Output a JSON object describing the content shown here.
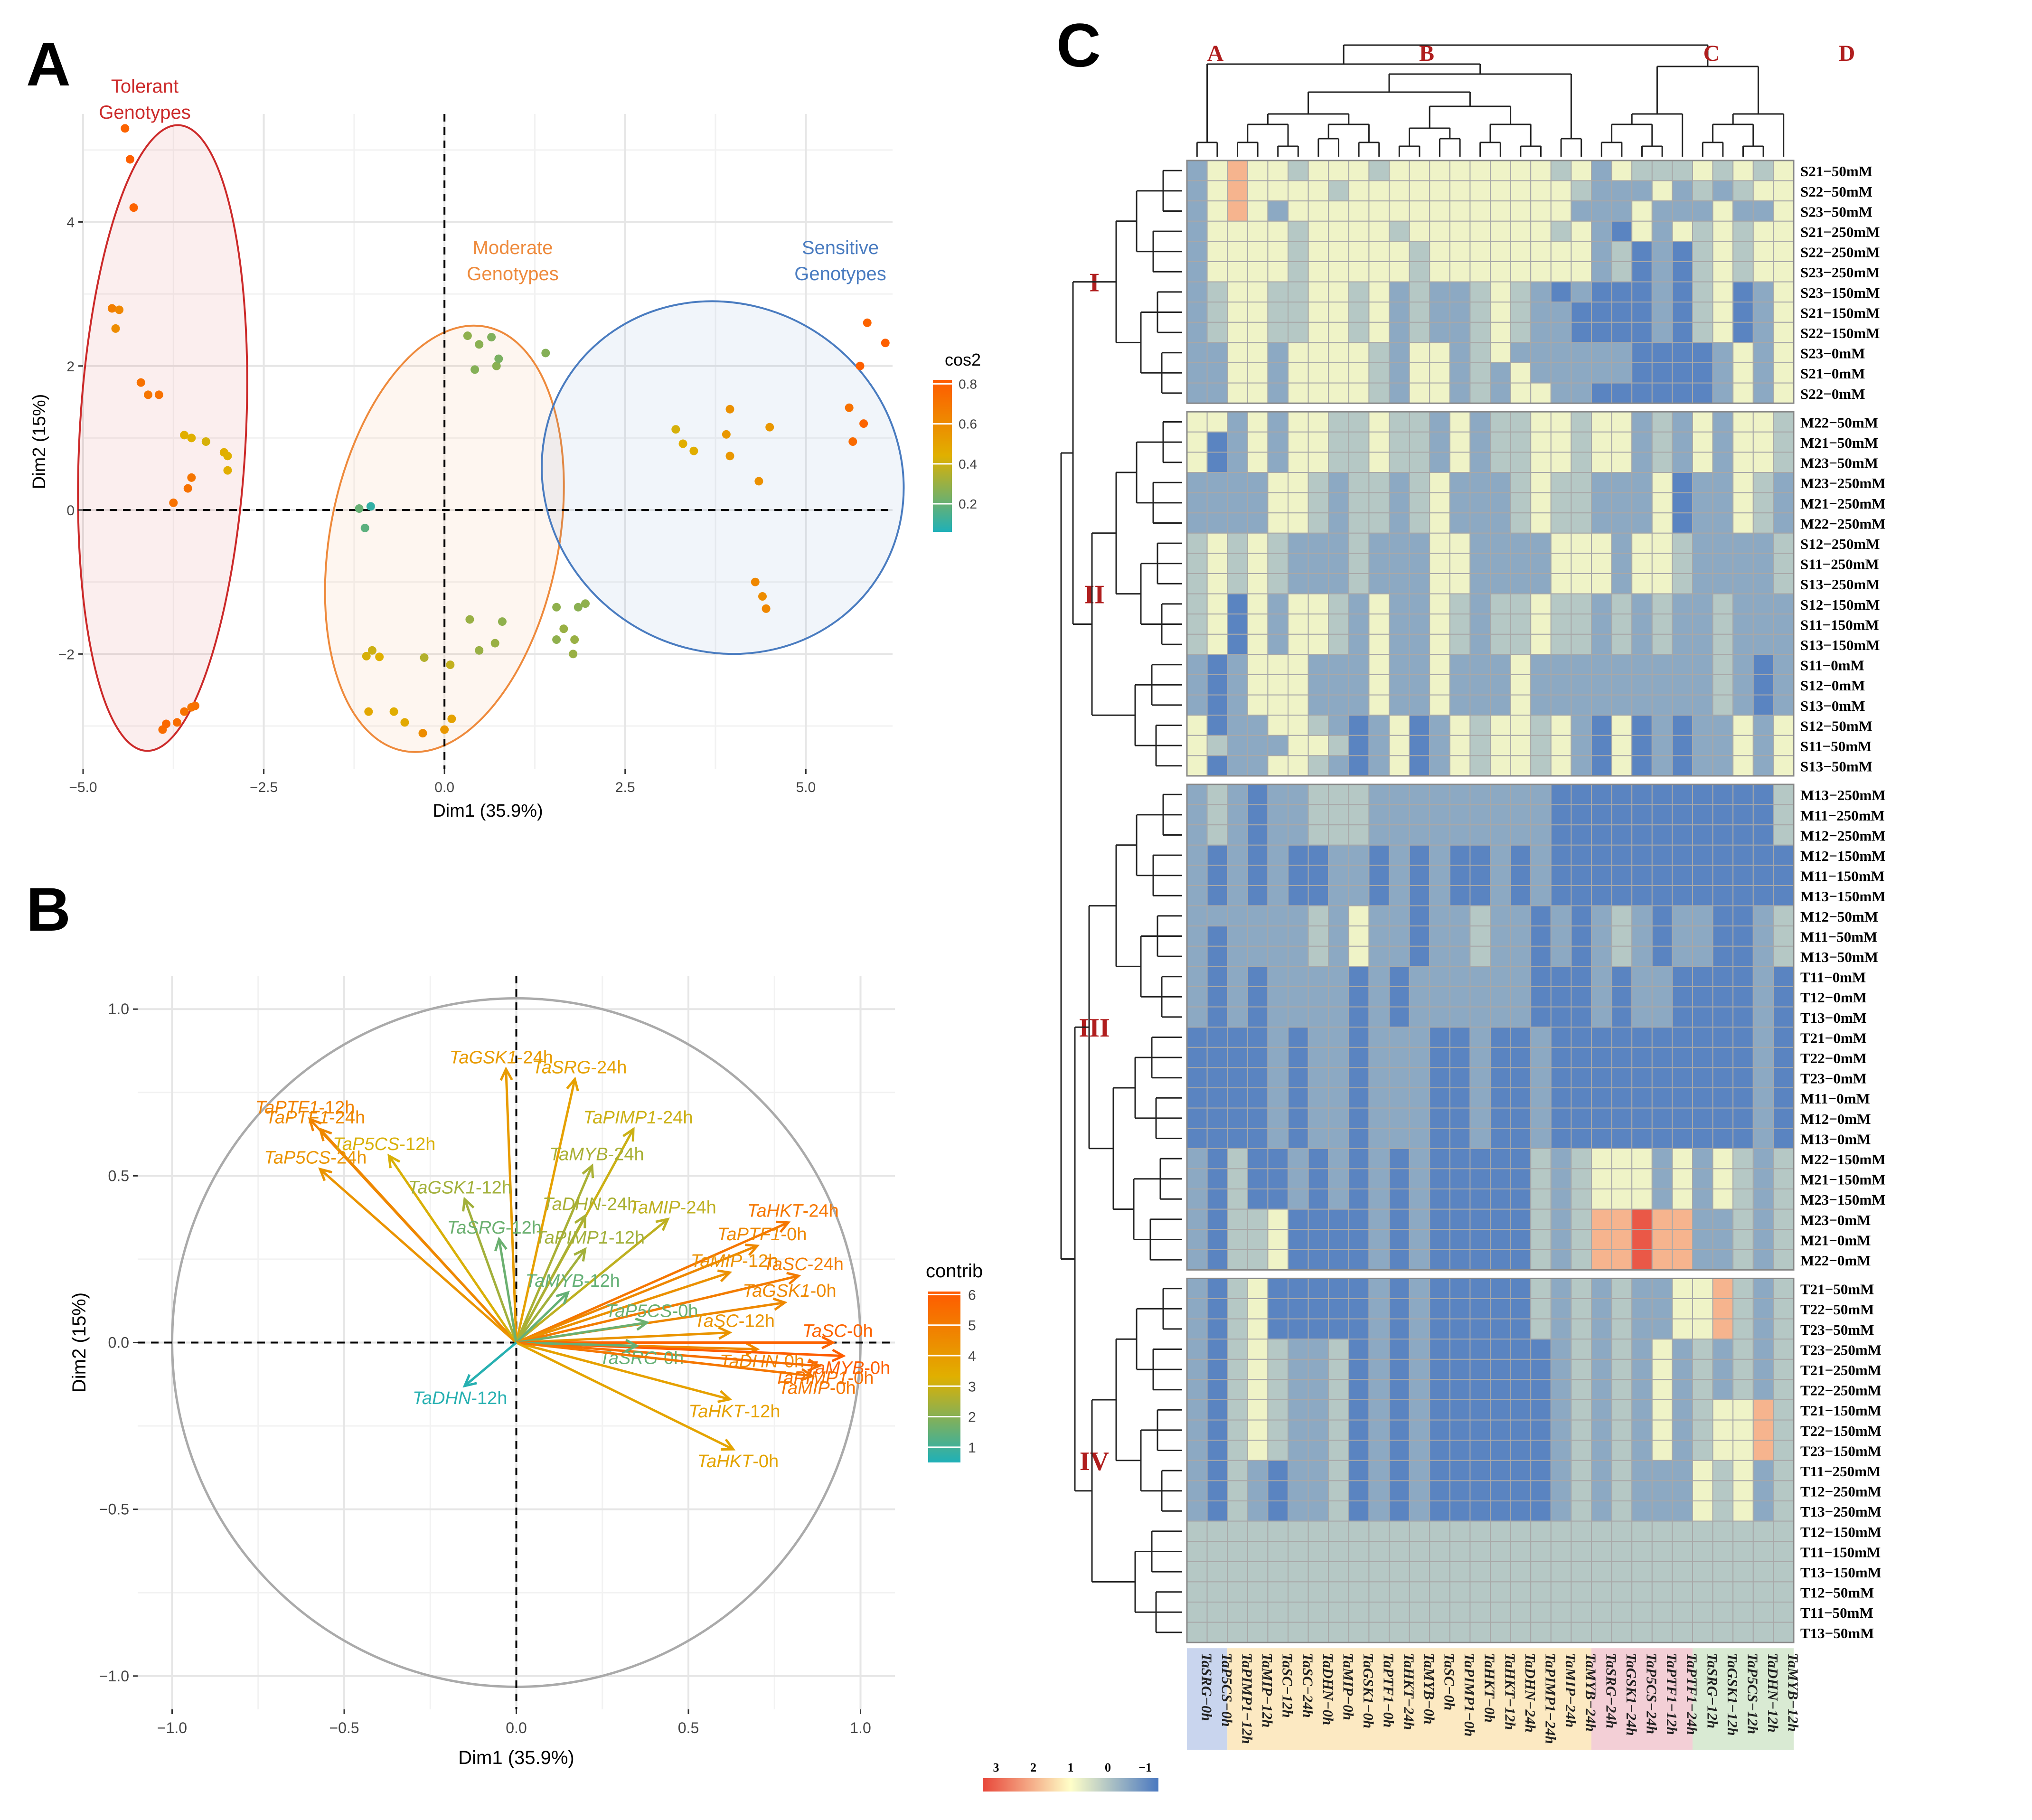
{
  "colors": {
    "tolerant": "#cc2a2a",
    "moderate": "#ee8a3c",
    "sensitive": "#4a7cc0",
    "row_cluster_label": "#b01e1e",
    "cos2_low": "#1fb0b8",
    "cos2_mid": "#e0b000",
    "cos2_high": "#ff5a00",
    "heat_low": "#4a78c0",
    "heat_mid": "#ffffc8",
    "heat_high": "#e8473a"
  },
  "chart_data": [
    {
      "panel": "A",
      "type": "scatter",
      "xlabel": "Dim1 (35.9%)",
      "ylabel": "Dim2 (15%)",
      "xlim": [
        -5.0,
        6.2
      ],
      "ylim": [
        -3.6,
        5.5
      ],
      "x_ticks": [
        -5.0,
        -2.5,
        0.0,
        2.5,
        5.0
      ],
      "x_tick_labels": [
        "−5.0",
        "−2.5",
        "0.0",
        "2.5",
        "5.0"
      ],
      "y_ticks": [
        -2,
        0,
        2,
        4
      ],
      "y_tick_labels": [
        "−2",
        "0",
        "2",
        "4"
      ],
      "legend_title": "cos2",
      "legend_ticks": [
        0.2,
        0.4,
        0.6,
        0.8
      ],
      "groups": [
        {
          "label": "Tolerant\nGenotypes",
          "color_key": "tolerant",
          "ellipse": {
            "cx": -3.9,
            "cy": 1.0,
            "rx": 1.15,
            "ry": 4.35,
            "angle": 3
          }
        },
        {
          "label": "Moderate\nGenotypes",
          "color_key": "moderate",
          "ellipse": {
            "cx": 0.0,
            "cy": -0.4,
            "rx": 1.58,
            "ry": 3.0,
            "angle": 11
          }
        },
        {
          "label": "Sensitive\nGenotypes",
          "color_key": "sensitive",
          "ellipse": {
            "cx": 3.85,
            "cy": 0.45,
            "rx": 2.55,
            "ry": 2.4,
            "angle": 33
          }
        }
      ],
      "points": [
        {
          "x": -4.42,
          "y": 5.3,
          "cos2": 0.78
        },
        {
          "x": -4.35,
          "y": 4.87,
          "cos2": 0.8
        },
        {
          "x": -4.3,
          "y": 4.2,
          "cos2": 0.78
        },
        {
          "x": -4.6,
          "y": 2.8,
          "cos2": 0.66
        },
        {
          "x": -4.55,
          "y": 2.52,
          "cos2": 0.6
        },
        {
          "x": -4.5,
          "y": 2.78,
          "cos2": 0.62
        },
        {
          "x": -4.2,
          "y": 1.77,
          "cos2": 0.72
        },
        {
          "x": -4.1,
          "y": 1.6,
          "cos2": 0.7
        },
        {
          "x": -3.95,
          "y": 1.6,
          "cos2": 0.72
        },
        {
          "x": -3.6,
          "y": 1.04,
          "cos2": 0.45
        },
        {
          "x": -3.5,
          "y": 1.0,
          "cos2": 0.44
        },
        {
          "x": -3.3,
          "y": 0.95,
          "cos2": 0.42
        },
        {
          "x": -3.05,
          "y": 0.8,
          "cos2": 0.45
        },
        {
          "x": -3.0,
          "y": 0.75,
          "cos2": 0.44
        },
        {
          "x": -3.0,
          "y": 0.55,
          "cos2": 0.45
        },
        {
          "x": -3.5,
          "y": 0.45,
          "cos2": 0.7
        },
        {
          "x": -3.55,
          "y": 0.3,
          "cos2": 0.72
        },
        {
          "x": -3.75,
          "y": 0.1,
          "cos2": 0.72
        },
        {
          "x": -3.9,
          "y": -3.05,
          "cos2": 0.74
        },
        {
          "x": -3.85,
          "y": -2.97,
          "cos2": 0.76
        },
        {
          "x": -3.7,
          "y": -2.95,
          "cos2": 0.74
        },
        {
          "x": -3.6,
          "y": -2.8,
          "cos2": 0.72
        },
        {
          "x": -3.5,
          "y": -2.74,
          "cos2": 0.7
        },
        {
          "x": -3.45,
          "y": -2.72,
          "cos2": 0.72
        },
        {
          "x": -1.18,
          "y": 0.02,
          "cos2": 0.2
        },
        {
          "x": -1.1,
          "y": -0.25,
          "cos2": 0.18
        },
        {
          "x": -1.02,
          "y": 0.05,
          "cos2": 0.1
        },
        {
          "x": 0.32,
          "y": 2.42,
          "cos2": 0.28
        },
        {
          "x": 0.65,
          "y": 2.4,
          "cos2": 0.25
        },
        {
          "x": 0.48,
          "y": 2.3,
          "cos2": 0.27
        },
        {
          "x": 0.42,
          "y": 1.95,
          "cos2": 0.26
        },
        {
          "x": 0.72,
          "y": 2.0,
          "cos2": 0.27
        },
        {
          "x": 0.75,
          "y": 2.1,
          "cos2": 0.24
        },
        {
          "x": 1.4,
          "y": 2.18,
          "cos2": 0.26
        },
        {
          "x": -1.0,
          "y": -1.95,
          "cos2": 0.4
        },
        {
          "x": -1.08,
          "y": -2.03,
          "cos2": 0.42
        },
        {
          "x": -0.9,
          "y": -2.04,
          "cos2": 0.44
        },
        {
          "x": -0.28,
          "y": -2.05,
          "cos2": 0.35
        },
        {
          "x": 0.08,
          "y": -2.15,
          "cos2": 0.38
        },
        {
          "x": 0.35,
          "y": -1.52,
          "cos2": 0.3
        },
        {
          "x": 0.48,
          "y": -1.95,
          "cos2": 0.3
        },
        {
          "x": 0.7,
          "y": -1.85,
          "cos2": 0.3
        },
        {
          "x": 0.8,
          "y": -1.55,
          "cos2": 0.28
        },
        {
          "x": -1.05,
          "y": -2.8,
          "cos2": 0.48
        },
        {
          "x": -0.7,
          "y": -2.8,
          "cos2": 0.45
        },
        {
          "x": -0.55,
          "y": -2.95,
          "cos2": 0.47
        },
        {
          "x": -0.3,
          "y": -3.1,
          "cos2": 0.6
        },
        {
          "x": 0.0,
          "y": -3.05,
          "cos2": 0.55
        },
        {
          "x": 0.1,
          "y": -2.9,
          "cos2": 0.5
        },
        {
          "x": 1.55,
          "y": -1.35,
          "cos2": 0.28
        },
        {
          "x": 1.65,
          "y": -1.65,
          "cos2": 0.3
        },
        {
          "x": 1.55,
          "y": -1.8,
          "cos2": 0.28
        },
        {
          "x": 1.8,
          "y": -1.8,
          "cos2": 0.3
        },
        {
          "x": 1.85,
          "y": -1.35,
          "cos2": 0.27
        },
        {
          "x": 1.78,
          "y": -2.0,
          "cos2": 0.3
        },
        {
          "x": 1.95,
          "y": -1.3,
          "cos2": 0.28
        },
        {
          "x": 3.2,
          "y": 1.12,
          "cos2": 0.42
        },
        {
          "x": 3.3,
          "y": 0.92,
          "cos2": 0.45
        },
        {
          "x": 3.45,
          "y": 0.82,
          "cos2": 0.45
        },
        {
          "x": 3.9,
          "y": 1.05,
          "cos2": 0.55
        },
        {
          "x": 3.95,
          "y": 1.4,
          "cos2": 0.58
        },
        {
          "x": 3.95,
          "y": 0.75,
          "cos2": 0.55
        },
        {
          "x": 4.35,
          "y": 0.4,
          "cos2": 0.58
        },
        {
          "x": 4.5,
          "y": 1.15,
          "cos2": 0.55
        },
        {
          "x": 4.3,
          "y": -1.0,
          "cos2": 0.62
        },
        {
          "x": 4.4,
          "y": -1.2,
          "cos2": 0.6
        },
        {
          "x": 4.45,
          "y": -1.37,
          "cos2": 0.62
        },
        {
          "x": 5.6,
          "y": 1.42,
          "cos2": 0.72
        },
        {
          "x": 5.65,
          "y": 0.95,
          "cos2": 0.75
        },
        {
          "x": 5.8,
          "y": 1.2,
          "cos2": 0.78
        },
        {
          "x": 5.75,
          "y": 2.0,
          "cos2": 0.8
        },
        {
          "x": 5.85,
          "y": 2.6,
          "cos2": 0.78
        },
        {
          "x": 6.1,
          "y": 2.32,
          "cos2": 0.8
        }
      ]
    },
    {
      "panel": "B",
      "type": "scatter",
      "subtype": "pca-variable-correlation-circle",
      "xlabel": "Dim1 (35.9%)",
      "ylabel": "Dim2 (15%)",
      "xlim": [
        -1.1,
        1.1
      ],
      "ylim": [
        -1.1,
        1.1
      ],
      "x_ticks": [
        -1.0,
        -0.5,
        0.0,
        0.5,
        1.0
      ],
      "x_tick_labels": [
        "−1.0",
        "−0.5",
        "0.0",
        "0.5",
        "1.0"
      ],
      "y_ticks": [
        -1.0,
        -0.5,
        0.0,
        0.5,
        1.0
      ],
      "y_tick_labels": [
        "−1.0",
        "−0.5",
        "0.0",
        "0.5",
        "1.0"
      ],
      "legend_title": "contrib",
      "legend_ticks": [
        1,
        2,
        3,
        4,
        5,
        6
      ],
      "variables": [
        {
          "gene": "TaGSK1",
          "time": "-24h",
          "x": -0.03,
          "y": 0.82,
          "contrib": 4.0
        },
        {
          "gene": "TaSRG",
          "time": "-24h",
          "x": 0.17,
          "y": 0.79,
          "contrib": 3.8
        },
        {
          "gene": "TaPTF1",
          "time": "-12h",
          "x": -0.6,
          "y": 0.67,
          "contrib": 4.8
        },
        {
          "gene": "TaPTF1",
          "time": "-24h",
          "x": -0.57,
          "y": 0.64,
          "contrib": 4.6
        },
        {
          "gene": "TaP5CS",
          "time": "-12h",
          "x": -0.37,
          "y": 0.56,
          "contrib": 3.2
        },
        {
          "gene": "TaP5CS",
          "time": "-24h",
          "x": -0.57,
          "y": 0.52,
          "contrib": 4.2
        },
        {
          "gene": "TaPIMP1",
          "time": "-24h",
          "x": 0.34,
          "y": 0.64,
          "contrib": 3.0
        },
        {
          "gene": "TaMYB",
          "time": "-24h",
          "x": 0.22,
          "y": 0.53,
          "contrib": 2.5
        },
        {
          "gene": "TaGSK1",
          "time": "-12h",
          "x": -0.15,
          "y": 0.43,
          "contrib": 2.4
        },
        {
          "gene": "TaSRG",
          "time": "-12h",
          "x": -0.05,
          "y": 0.31,
          "contrib": 1.6
        },
        {
          "gene": "TaDHN",
          "time": "-24h",
          "x": 0.2,
          "y": 0.38,
          "contrib": 2.5
        },
        {
          "gene": "TaMIP",
          "time": "-24h",
          "x": 0.44,
          "y": 0.37,
          "contrib": 2.8
        },
        {
          "gene": "TaPIMP1",
          "time": "-12h",
          "x": 0.2,
          "y": 0.28,
          "contrib": 2.4
        },
        {
          "gene": "TaHKT",
          "time": "-24h",
          "x": 0.79,
          "y": 0.36,
          "contrib": 5.2
        },
        {
          "gene": "TaPTF1",
          "time": "-0h",
          "x": 0.7,
          "y": 0.29,
          "contrib": 4.6
        },
        {
          "gene": "TaMYB",
          "time": "-12h",
          "x": 0.15,
          "y": 0.15,
          "contrib": 1.5
        },
        {
          "gene": "TaMIP",
          "time": "-12h",
          "x": 0.62,
          "y": 0.21,
          "contrib": 4.3
        },
        {
          "gene": "TaSC",
          "time": "-24h",
          "x": 0.82,
          "y": 0.2,
          "contrib": 5.0
        },
        {
          "gene": "TaGSK1",
          "time": "-0h",
          "x": 0.78,
          "y": 0.12,
          "contrib": 4.6
        },
        {
          "gene": "TaP5CS",
          "time": "-0h",
          "x": 0.38,
          "y": 0.06,
          "contrib": 1.6
        },
        {
          "gene": "TaSC",
          "time": "-12h",
          "x": 0.62,
          "y": 0.03,
          "contrib": 4.2
        },
        {
          "gene": "TaDHN",
          "time": "-0h",
          "x": 0.7,
          "y": -0.02,
          "contrib": 4.6
        },
        {
          "gene": "TaSC",
          "time": "-0h",
          "x": 0.92,
          "y": 0.0,
          "contrib": 5.8
        },
        {
          "gene": "TaMYB",
          "time": "-0h",
          "x": 0.95,
          "y": -0.04,
          "contrib": 6.0
        },
        {
          "gene": "TaPIMP1",
          "time": "-0h",
          "x": 0.88,
          "y": -0.07,
          "contrib": 5.4
        },
        {
          "gene": "TaSRG",
          "time": "-0h",
          "x": 0.35,
          "y": -0.01,
          "contrib": 1.5
        },
        {
          "gene": "TaHKT",
          "time": "-12h",
          "x": 0.62,
          "y": -0.17,
          "contrib": 3.8
        },
        {
          "gene": "TaMIP",
          "time": "-0h",
          "x": 0.86,
          "y": -0.1,
          "contrib": 5.2
        },
        {
          "gene": "TaHKT",
          "time": "-0h",
          "x": 0.63,
          "y": -0.32,
          "contrib": 3.7
        },
        {
          "gene": "TaDHN",
          "time": "-12h",
          "x": -0.15,
          "y": -0.13,
          "contrib": 0.6
        }
      ]
    },
    {
      "panel": "C",
      "type": "heatmap",
      "legend_ticks": [
        "3",
        "2",
        "1",
        "0",
        "−1"
      ],
      "column_cluster_labels": [
        "A",
        "B",
        "C",
        "D"
      ],
      "row_cluster_labels": [
        "I",
        "II",
        "III",
        "IV"
      ],
      "columns": [
        "TaSRG−0h",
        "TaP5CS−0h",
        "TaPIMP1−12h",
        "TaMIP−12h",
        "TaSC−12h",
        "TaSC−24h",
        "TaDHN−0h",
        "TaMIP−0h",
        "TaGSK1−0h",
        "TaPTF1−0h",
        "TaHKT−24h",
        "TaMYB−0h",
        "TaSC−0h",
        "TaPIMP1−0h",
        "TaHKT−0h",
        "TaHKT−12h",
        "TaDHN−24h",
        "TaPIMP1−24h",
        "TaMIP−24h",
        "TaMYB−24h",
        "TaSRG−24h",
        "TaGSK1−24h",
        "TaP5CS−24h",
        "TaPTF1−12h",
        "TaPTF1−24h",
        "TaSRG−12h",
        "TaGSK1−12h",
        "TaP5CS−12h",
        "TaDHN−12h",
        "TaMYB−12h"
      ],
      "column_group_sizes": [
        2,
        18,
        5,
        5
      ],
      "column_group_colors": [
        "#c9d5ee",
        "#fce9c2",
        "#f3cfd6",
        "#d9ead3"
      ],
      "row_blocks": [
        [
          "S21−50mM",
          "S22−50mM",
          "S23−50mM",
          "S21−250mM",
          "S22−250mM",
          "S23−250mM",
          "S23−150mM",
          "S21−150mM",
          "S22−150mM",
          "S23−0mM",
          "S21−0mM",
          "S22−0mM"
        ],
        [
          "M22−50mM",
          "M21−50mM",
          "M23−50mM",
          "M23−250mM",
          "M21−250mM",
          "M22−250mM",
          "S12−250mM",
          "S11−250mM",
          "S13−250mM",
          "S12−150mM",
          "S11−150mM",
          "S13−150mM",
          "S11−0mM",
          "S12−0mM",
          "S13−0mM",
          "S12−50mM",
          "S11−50mM",
          "S13−50mM"
        ],
        [
          "M13−250mM",
          "M11−250mM",
          "M12−250mM",
          "M12−150mM",
          "M11−150mM",
          "M13−150mM",
          "M12−50mM",
          "M11−50mM",
          "M13−50mM",
          "T11−0mM",
          "T12−0mM",
          "T13−0mM",
          "T21−0mM",
          "T22−0mM",
          "T23−0mM",
          "M11−0mM",
          "M12−0mM",
          "M13−0mM",
          "M22−150mM",
          "M21−150mM",
          "M23−150mM",
          "M23−0mM",
          "M21−0mM",
          "M22−0mM"
        ],
        [
          "T21−50mM",
          "T22−50mM",
          "T23−50mM",
          "T23−250mM",
          "T21−250mM",
          "T22−250mM",
          "T21−150mM",
          "T22−150mM",
          "T23−150mM",
          "T11−250mM",
          "T12−250mM",
          "T13−250mM",
          "T12−150mM",
          "T11−150mM",
          "T13−150mM",
          "T12−50mM",
          "T11−50mM",
          "T13−50mM"
        ]
      ],
      "values": [
        "01211.111.11111111.101...1.1.1",
        "0121111.11111111111.00010.0.11",
        "012101111111111111100010001001",
        "01111.1111.1111111.10-101.1.11",
        "01111.11111.111111110.-0-.1.11",
        "01111.11111.111111110.-0-.1.11",
        "0.11..11.10.00.1.0-0---0-.1-01",
        "0.11..11.10.00.1.00----0-.1-01",
        "0.11..11.10.00.1.00----0-.1-01",
        "001101111.0110.1000000----0101",
        "001101111.0110.0100000----0101",
        "001101111.0110.01100------0101",
        "1101011..1..010..11.110.01011.",
        "1-01011..1..010..11.110.01011.",
        "1-01011..1..010..11.110.01011.",
        "000011.0..0.1000.1..0001-001.0",
        "000011.0..0.1000.1..0001-001.0",
        "000011.0..0.1000.1..0001-001.0",
        ".1.1.000.000110000111011.0000.",
        ".1.1.000.000110000111011.0000.",
        ".1.1.000.000110000111011.0000.",
        ".1-1011.01001.0..1..0.0.00.000",
        ".1-1011.01001.0..1..0.0.00.000",
        ".1-1011.01001.0..1..0.0.00.000",
        "0-011100010010001000000000.0-0",
        "0-011100010010001000000000.0-0",
        "0-011100010010001000000000.0-0",
        "1-0011.0-01-01.11.10-1-0-00101",
        "1.00011.-01-01.11.10-1-0-00101",
        "1-0011.0-01-01.11.10-1-0-00101",
        "0.0-00...000000000-----------.",
        "0.0-00...000000000-----------.",
        "0.0-00...000000000-----------.",
        "0-0-0--00-0-0--0-0------------",
        "0-0-0--00-0-0--0-0------------",
        "0-0-0--00-0-0--0-0------------",
        "000000.0100-00.00-0-0.0-00--0.",
        "0-0000.0100-00.00-0-0.0-00--0.",
        "0-0000.0100-00.00-0-0.0-00--0.",
        "0-0-0000-0-000000---0-00----0-",
        "0-0-0000-0-000000---0-00----0-",
        "0-0-0000-0-000000---0-00----0-",
        "----0-00-000--0--0----------0-",
        "----0-00-000--0--0----------0-",
        "----0-00-000--0--0----------0-",
        "----0-00-000--0--0----------0-",
        "----0-00-000--0--0----------0-",
        "----0-00-000--0--0----------0-",
        "0-.--0-0-0-0-----.0.1110101.0.",
        "0-.--0-0-0-0-----.0.1110101.0.",
        "0-.--0-0-0-0-----.0.1110101.0.",
        "0-..1----0-0-----.0.2232200.0.",
        "0-..1----0-0-----.0.2232200.0.",
        "0-..1----0-0-----.0.2232200.0.",
        "0-.1-----0-0-----.0.0.00112.0.",
        "0-.1-----0-0-----.0.0.00112.0.",
        "0-.1-----0-0-----.0.0.00112.0.",
        "0-.1.00.-0-0------0.0.010.0.0.",
        "0-.1.00.-0-0------0.0.010.0.0.",
        "0-.1.00.-0-0------0.0.010.0.0.",
        "0-.1.00.-0-0------0.0.010.112.",
        "0-.1.00.-0-0------0.0.010.112.",
        "0-.1.00.-0-0------0.0.010.112.",
        "0-.0-00.-0-0------0.0.0001.10.",
        "0-.0-00.-0-0------0.0.0001.10.",
        "0-.0-00.-0-0------0.0.0001.10."
      ]
    }
  ],
  "panel_labels": [
    "A",
    "B",
    "C"
  ]
}
